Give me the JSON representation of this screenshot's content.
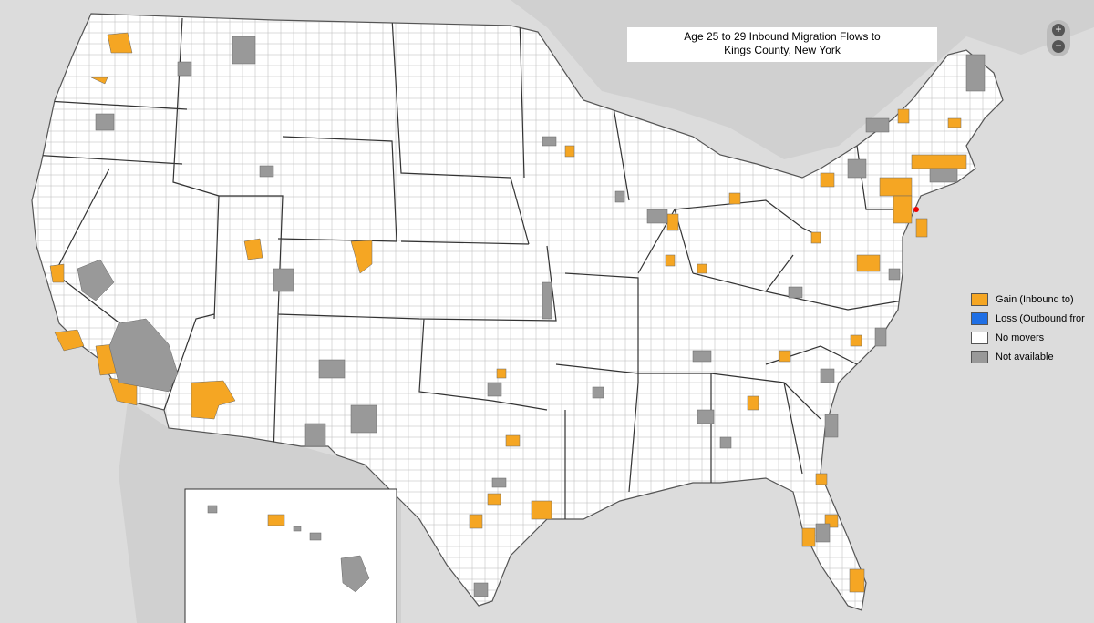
{
  "title": {
    "line1": "Age 25 to 29 Inbound Migration Flows to",
    "line2": "Kings County, New York"
  },
  "legend": {
    "items": [
      {
        "label": "Gain (Inbound to)",
        "color": "#f5a623"
      },
      {
        "label": "Loss (Outbound fror",
        "color": "#1f6fe5"
      },
      {
        "label": "No movers",
        "color": "#ffffff"
      },
      {
        "label": "Not available",
        "color": "#999999"
      }
    ]
  },
  "zoom": {
    "in": "+",
    "out": "−"
  }
}
